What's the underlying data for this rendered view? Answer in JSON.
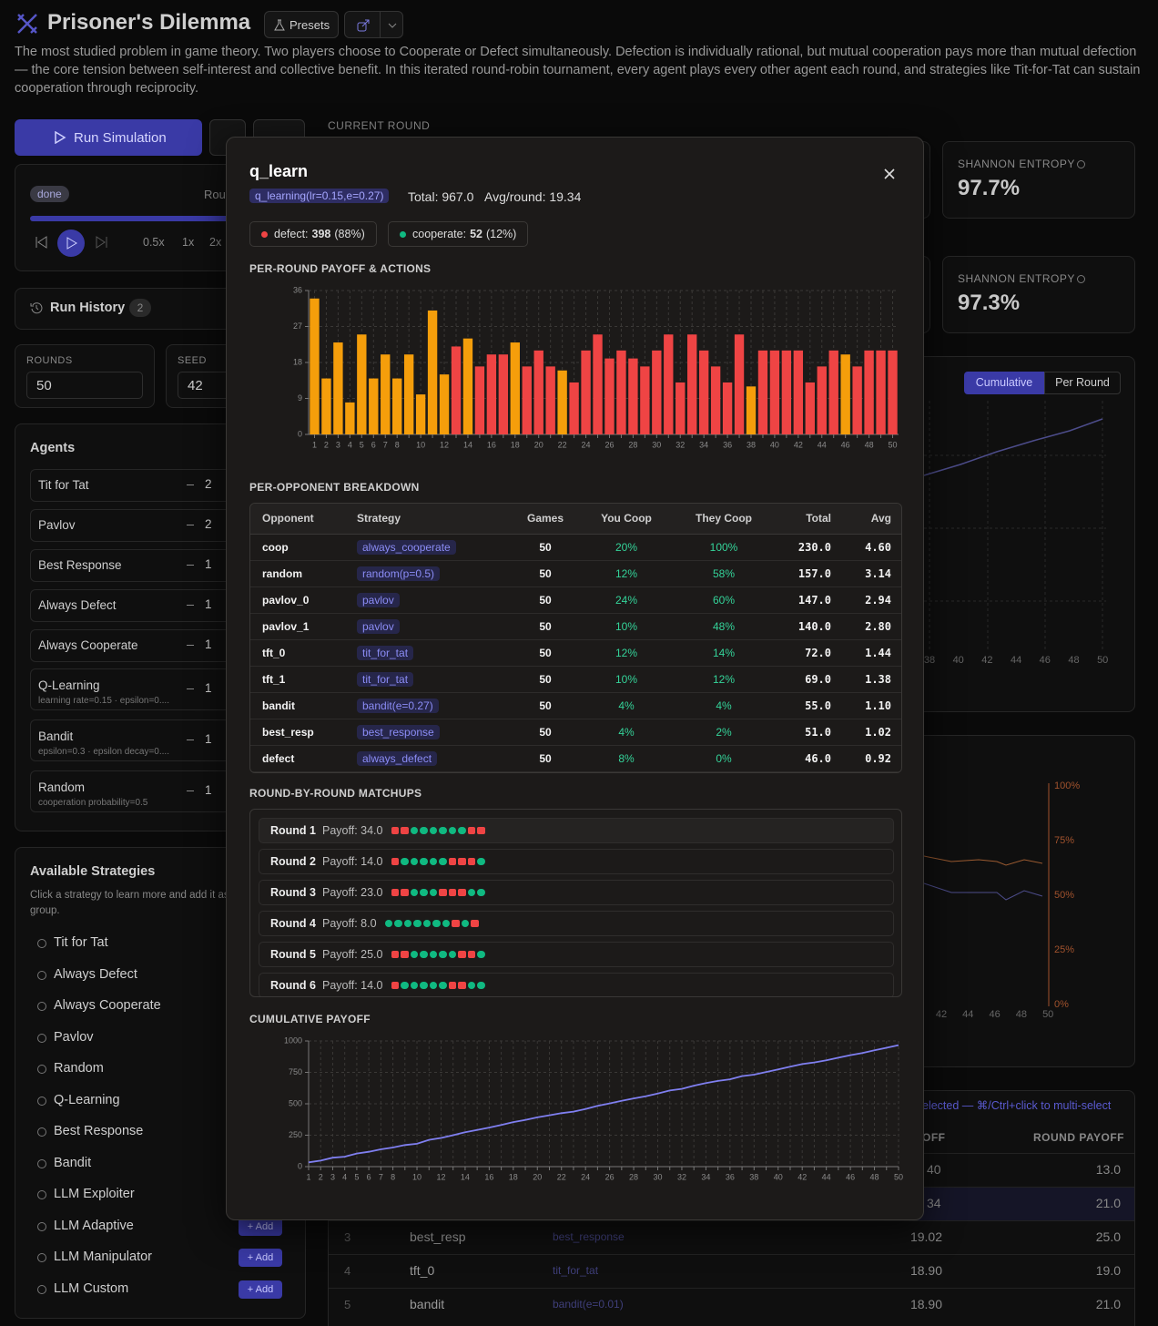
{
  "header": {
    "title": "Prisoner's Dilemma",
    "presets": "Presets",
    "description": "The most studied problem in game theory. Two players choose to Cooperate or Defect simultaneously. Defection is individually rational, but mutual cooperation pays more than mutual defection — the core tension between self-interest and collective benefit. In this iterated round-robin tournament, every agent plays every other agent each round, and strategies like Tit-for-Tat can sustain cooperation through reciprocity."
  },
  "controls": {
    "run": "Run Simulation",
    "current_round": "CURRENT ROUND",
    "status": "done",
    "round": "Rou",
    "speeds": [
      "0.5x",
      "1x",
      "2x"
    ],
    "history": "Run History",
    "history_count": "2",
    "rounds_label": "ROUNDS",
    "rounds": "50",
    "seed_label": "SEED",
    "seed": "42"
  },
  "agents": {
    "title": "Agents",
    "items": [
      {
        "name": "Tit for Tat",
        "count": "2"
      },
      {
        "name": "Pavlov",
        "count": "2"
      },
      {
        "name": "Best Response",
        "count": "1"
      },
      {
        "name": "Always Defect",
        "count": "1"
      },
      {
        "name": "Always Cooperate",
        "count": "1"
      },
      {
        "name": "Q-Learning",
        "count": "1",
        "detail": "learning rate=0.15 · epsilon=0...."
      },
      {
        "name": "Bandit",
        "count": "1",
        "detail": "epsilon=0.3 · epsilon decay=0...."
      },
      {
        "name": "Random",
        "count": "1",
        "detail": "cooperation probability=0.5"
      }
    ]
  },
  "strategies": {
    "title": "Available Strategies",
    "hint": "Click a strategy to learn more and add it as an agent group.",
    "add": "+ Add",
    "items": [
      "Tit for Tat",
      "Always Defect",
      "Always Cooperate",
      "Pavlov",
      "Random",
      "Q-Learning",
      "Best Response",
      "Bandit",
      "LLM Exploiter",
      "LLM Adaptive",
      "LLM Manipulator",
      "LLM Custom"
    ]
  },
  "stats": {
    "label": "SHANNON ENTROPY",
    "values": [
      "97.7%",
      "97.3%"
    ]
  },
  "view_toggle": [
    "Cumulative",
    "Per Round"
  ],
  "bg_chart_1": {
    "xticks": [
      "38",
      "40",
      "42",
      "44",
      "46",
      "48",
      "50"
    ]
  },
  "bg_chart_2": {
    "xticks": [
      "42",
      "44",
      "46",
      "48",
      "50"
    ],
    "yticks": [
      "100%",
      "75%",
      "50%",
      "25%",
      "0%"
    ]
  },
  "leaderboard": {
    "hint": "elected — ⌘/Ctrl+click to multi-select",
    "headers": [
      "OFF",
      "ROUND PAYOFF"
    ],
    "rows": [
      {
        "avg": "40",
        "payoff": "13.0"
      },
      {
        "avg": "34",
        "payoff": "21.0"
      },
      {
        "rank": "3",
        "name": "best_resp",
        "strategy": "best_response",
        "avg": "19.02",
        "payoff": "25.0"
      },
      {
        "rank": "4",
        "name": "tft_0",
        "strategy": "tit_for_tat",
        "avg": "18.90",
        "payoff": "19.0"
      },
      {
        "rank": "5",
        "name": "bandit",
        "strategy": "bandit(e=0.01)",
        "avg": "18.90",
        "payoff": "21.0"
      }
    ]
  },
  "modal": {
    "title": "q_learn",
    "strategy": "q_learning(lr=0.15,e=0.27)",
    "total": "Total: 967.0",
    "avg": "Avg/round: 19.34",
    "badges": [
      {
        "label": "defect:",
        "count": "398",
        "pct": "(88%)",
        "color": "#ef4444"
      },
      {
        "label": "cooperate:",
        "count": "52",
        "pct": "(12%)",
        "color": "#10b981"
      }
    ],
    "payoff_chart": {
      "type": "bar",
      "title": "PER-ROUND PAYOFF & ACTIONS",
      "categories": [
        1,
        2,
        3,
        4,
        5,
        6,
        7,
        8,
        null,
        10,
        null,
        12,
        null,
        14,
        null,
        16,
        null,
        18,
        null,
        20,
        null,
        22,
        null,
        24,
        null,
        26,
        null,
        28,
        null,
        30,
        null,
        32,
        null,
        34,
        null,
        36,
        null,
        38,
        null,
        40,
        null,
        42,
        null,
        44,
        null,
        46,
        null,
        48,
        null,
        50
      ],
      "values": [
        34,
        14,
        23,
        8,
        25,
        14,
        20,
        14,
        20,
        10,
        31,
        15,
        22,
        24,
        17,
        20,
        20,
        23,
        17,
        21,
        17,
        16,
        13,
        21,
        25,
        19,
        21,
        19,
        17,
        21,
        25,
        13,
        25,
        21,
        17,
        13,
        25,
        12,
        21,
        21,
        21,
        21,
        13,
        17,
        21,
        20,
        17,
        21,
        21,
        21
      ],
      "bar_colors": [
        "#f59e0b",
        "#f59e0b",
        "#f59e0b",
        "#f59e0b",
        "#f59e0b",
        "#f59e0b",
        "#f59e0b",
        "#f59e0b",
        "#f59e0b",
        "#f59e0b",
        "#f59e0b",
        "#f59e0b",
        "#ef4444",
        "#f59e0b",
        "#ef4444",
        "#ef4444",
        "#ef4444",
        "#f59e0b",
        "#ef4444",
        "#ef4444",
        "#ef4444",
        "#f59e0b",
        "#ef4444",
        "#ef4444",
        "#ef4444",
        "#ef4444",
        "#ef4444",
        "#ef4444",
        "#ef4444",
        "#ef4444",
        "#ef4444",
        "#ef4444",
        "#ef4444",
        "#ef4444",
        "#ef4444",
        "#ef4444",
        "#ef4444",
        "#f59e0b",
        "#ef4444",
        "#ef4444",
        "#ef4444",
        "#ef4444",
        "#ef4444",
        "#ef4444",
        "#ef4444",
        "#f59e0b",
        "#ef4444",
        "#ef4444",
        "#ef4444",
        "#ef4444"
      ],
      "ylim": [
        0,
        36
      ],
      "yticks": [
        0,
        9,
        18,
        27,
        36
      ],
      "grid": true
    },
    "breakdown": {
      "title": "PER-OPPONENT BREAKDOWN",
      "columns": [
        "Opponent",
        "Strategy",
        "Games",
        "You Coop",
        "They Coop",
        "Total",
        "Avg"
      ],
      "rows": [
        [
          "coop",
          "always_cooperate",
          "50",
          "20%",
          "100%",
          "230.0",
          "4.60"
        ],
        [
          "random",
          "random(p=0.5)",
          "50",
          "12%",
          "58%",
          "157.0",
          "3.14"
        ],
        [
          "pavlov_0",
          "pavlov",
          "50",
          "24%",
          "60%",
          "147.0",
          "2.94"
        ],
        [
          "pavlov_1",
          "pavlov",
          "50",
          "10%",
          "48%",
          "140.0",
          "2.80"
        ],
        [
          "tft_0",
          "tit_for_tat",
          "50",
          "12%",
          "14%",
          "72.0",
          "1.44"
        ],
        [
          "tft_1",
          "tit_for_tat",
          "50",
          "10%",
          "12%",
          "69.0",
          "1.38"
        ],
        [
          "bandit",
          "bandit(e=0.27)",
          "50",
          "4%",
          "4%",
          "55.0",
          "1.10"
        ],
        [
          "best_resp",
          "best_response",
          "50",
          "4%",
          "2%",
          "51.0",
          "1.02"
        ],
        [
          "defect",
          "always_defect",
          "50",
          "8%",
          "0%",
          "46.0",
          "0.92"
        ]
      ]
    },
    "matchups": {
      "title": "ROUND-BY-ROUND MATCHUPS",
      "action_colors": {
        "D": "#ef4444",
        "C": "#10b981"
      },
      "rows": [
        {
          "round": "Round 1",
          "payoff": "Payoff: 34.0",
          "actions": "DDCCCCCCDD"
        },
        {
          "round": "Round 2",
          "payoff": "Payoff: 14.0",
          "actions": "DCCCCCDDDC"
        },
        {
          "round": "Round 3",
          "payoff": "Payoff: 23.0",
          "actions": "DDCCCDDDCC"
        },
        {
          "round": "Round 4",
          "payoff": "Payoff: 8.0",
          "actions": "CCCCCCCDCD"
        },
        {
          "round": "Round 5",
          "payoff": "Payoff: 25.0",
          "actions": "DDCCCCCDDC"
        },
        {
          "round": "Round 6",
          "payoff": "Payoff: 14.0",
          "actions": "DCCCCCDDCC"
        }
      ]
    },
    "cumulative_chart": {
      "type": "line",
      "title": "CUMULATIVE PAYOFF",
      "categories": [
        1,
        2,
        3,
        4,
        5,
        6,
        7,
        8,
        null,
        10,
        null,
        12,
        null,
        14,
        null,
        16,
        null,
        18,
        null,
        20,
        null,
        22,
        null,
        24,
        null,
        26,
        null,
        28,
        null,
        30,
        null,
        32,
        null,
        34,
        null,
        36,
        null,
        38,
        null,
        40,
        null,
        42,
        null,
        44,
        null,
        46,
        null,
        48,
        null,
        50
      ],
      "values": [
        34,
        48,
        71,
        79,
        104,
        118,
        138,
        152,
        172,
        182,
        213,
        228,
        250,
        274,
        291,
        311,
        331,
        354,
        371,
        392,
        409,
        425,
        438,
        459,
        484,
        503,
        524,
        543,
        560,
        581,
        606,
        619,
        644,
        665,
        682,
        695,
        720,
        732,
        753,
        774,
        795,
        816,
        829,
        846,
        867,
        887,
        904,
        925,
        946,
        967
      ],
      "color": "#7f7ff0",
      "ylim": [
        0,
        1000
      ],
      "yticks": [
        0,
        250,
        500,
        750,
        {
          "value": 1000,
          "label": "1000"
        }
      ],
      "grid": true
    }
  }
}
